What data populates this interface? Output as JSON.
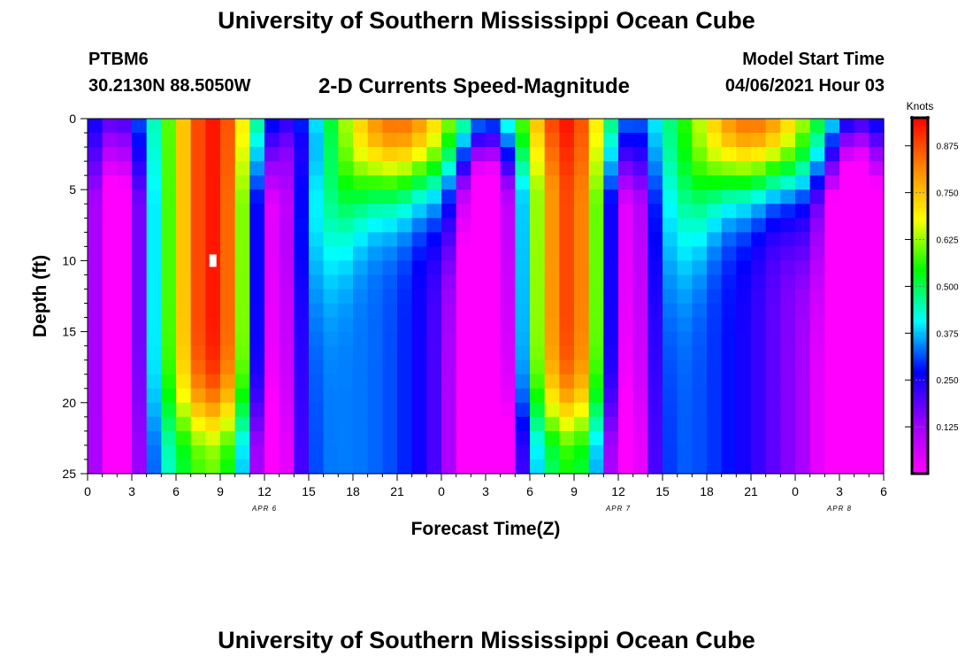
{
  "header": {
    "title": "University of Southern Mississippi Ocean Cube",
    "station": "PTBM6",
    "coordinates": "30.2130N  88.5050W",
    "subtitle": "2-D Currents Speed-Magnitude",
    "model_start_label": "Model Start Time",
    "model_start_value": "04/06/2021 Hour 03"
  },
  "footer": {
    "title": "University of Southern Mississippi Ocean Cube"
  },
  "chart_data": {
    "type": "heatmap",
    "title": "2-D Currents Speed-Magnitude",
    "xlabel": "Forecast Time(Z)",
    "ylabel": "Depth (ft)",
    "x_range_hours": [
      0,
      54
    ],
    "x_ticks": [
      {
        "hour": 0,
        "label": "0"
      },
      {
        "hour": 3,
        "label": "3"
      },
      {
        "hour": 6,
        "label": "6"
      },
      {
        "hour": 9,
        "label": "9"
      },
      {
        "hour": 12,
        "label": "12"
      },
      {
        "hour": 15,
        "label": "15"
      },
      {
        "hour": 18,
        "label": "18"
      },
      {
        "hour": 21,
        "label": "21"
      },
      {
        "hour": 24,
        "label": "0"
      },
      {
        "hour": 27,
        "label": "3"
      },
      {
        "hour": 30,
        "label": "6"
      },
      {
        "hour": 33,
        "label": "9"
      },
      {
        "hour": 36,
        "label": "12"
      },
      {
        "hour": 39,
        "label": "15"
      },
      {
        "hour": 42,
        "label": "18"
      },
      {
        "hour": 45,
        "label": "21"
      },
      {
        "hour": 48,
        "label": "0"
      },
      {
        "hour": 51,
        "label": "3"
      },
      {
        "hour": 54,
        "label": "6"
      }
    ],
    "date_labels": [
      {
        "hour": 12,
        "label": "APR 6"
      },
      {
        "hour": 36,
        "label": "APR 7"
      },
      {
        "hour": 51,
        "label": "APR 8"
      }
    ],
    "y_range_ft": [
      0,
      25
    ],
    "y_ticks": [
      0,
      5,
      10,
      15,
      20,
      25
    ],
    "y_inverted": true,
    "colorbar": {
      "title": "Knots",
      "min": 0.0,
      "max": 0.95,
      "ticks": [
        "0.125",
        "0.250",
        "0.375",
        "0.500",
        "0.625",
        "0.750",
        "0.875"
      ],
      "colors": [
        "#ff00ff",
        "#9900ff",
        "#0000ff",
        "#00ffff",
        "#00ff00",
        "#ffff00",
        "#ff8800",
        "#ff0000"
      ]
    },
    "field_model": {
      "description": "approximate speed field (knots) versus forecast hour and depth",
      "fast_tidal_phases_hours": [
        8.5,
        32.5
      ],
      "fast_tidal_peak_knots": 0.93,
      "slack_phases_hours": [
        2,
        12.5,
        27,
        36.5,
        52
      ],
      "secondary_surface_peaks_hours": [
        21,
        45
      ],
      "max_marker": {
        "hour": 8.5,
        "depth_ft": 10
      }
    },
    "grid": {
      "time_step_hours": 1,
      "depth_step_ft": 1
    }
  }
}
